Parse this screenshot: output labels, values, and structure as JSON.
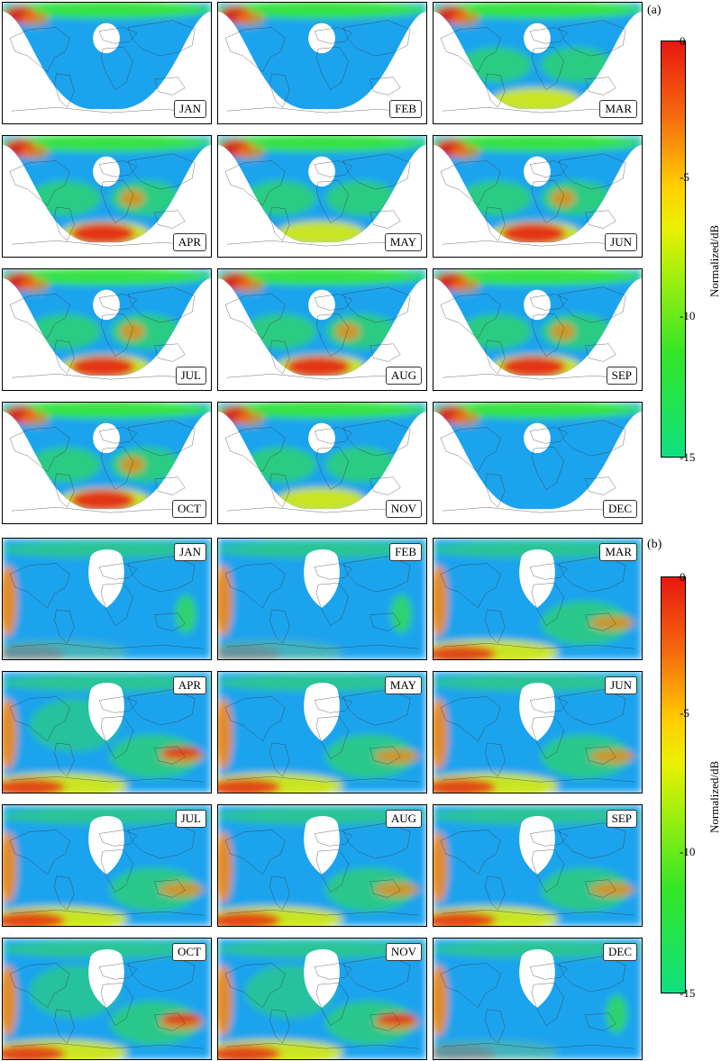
{
  "figure": {
    "panel_a": {
      "label": "(a)",
      "months": [
        "JAN",
        "FEB",
        "MAR",
        "APR",
        "MAY",
        "JUN",
        "JUL",
        "AUG",
        "SEP",
        "OCT",
        "NOV",
        "DEC"
      ],
      "colorbar": {
        "label": "Normalized/dB",
        "ticks": [
          "0",
          "-5",
          "-10",
          "-15"
        ]
      }
    },
    "panel_b": {
      "label": "(b)",
      "months": [
        "JAN",
        "FEB",
        "MAR",
        "APR",
        "MAY",
        "JUN",
        "JUL",
        "AUG",
        "SEP",
        "OCT",
        "NOV",
        "DEC"
      ],
      "colorbar": {
        "label": "Normalized/dB",
        "ticks": [
          "0",
          "-5",
          "-10",
          "-15"
        ]
      }
    }
  },
  "colors": {
    "ocean_blue": "#1aa3ee",
    "green": "#38e63a",
    "yellow": "#e8f000",
    "orange": "#f58a10",
    "red": "#e8170f",
    "coastline": "#333333"
  }
}
